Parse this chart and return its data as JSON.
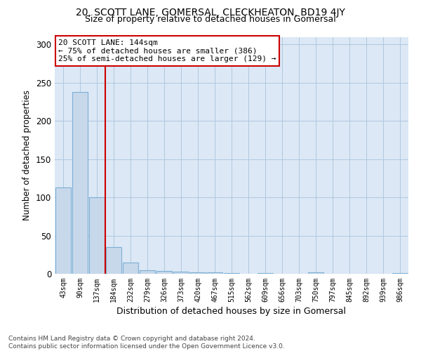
{
  "title": "20, SCOTT LANE, GOMERSAL, CLECKHEATON, BD19 4JY",
  "subtitle": "Size of property relative to detached houses in Gomersal",
  "xlabel": "Distribution of detached houses by size in Gomersal",
  "ylabel": "Number of detached properties",
  "footer_line1": "Contains HM Land Registry data © Crown copyright and database right 2024.",
  "footer_line2": "Contains public sector information licensed under the Open Government Licence v3.0.",
  "annotation_line1": "20 SCOTT LANE: 144sqm",
  "annotation_line2": "← 75% of detached houses are smaller (386)",
  "annotation_line3": "25% of semi-detached houses are larger (129) →",
  "categories": [
    "43sqm",
    "90sqm",
    "137sqm",
    "184sqm",
    "232sqm",
    "279sqm",
    "326sqm",
    "373sqm",
    "420sqm",
    "467sqm",
    "515sqm",
    "562sqm",
    "609sqm",
    "656sqm",
    "703sqm",
    "750sqm",
    "797sqm",
    "845sqm",
    "892sqm",
    "939sqm",
    "986sqm"
  ],
  "values": [
    113,
    238,
    100,
    35,
    15,
    5,
    4,
    3,
    2,
    2,
    1,
    0,
    1,
    0,
    0,
    2,
    0,
    0,
    0,
    0,
    1
  ],
  "bar_color": "#c8d8eb",
  "bar_edge_color": "#7bafd4",
  "vline_color": "#cc0000",
  "annotation_box_color": "#cc0000",
  "plot_bg_color": "#dce8f5",
  "figure_bg_color": "#ffffff",
  "grid_color": "#b0c8e0",
  "ylim": [
    0,
    310
  ],
  "yticks": [
    0,
    50,
    100,
    150,
    200,
    250,
    300
  ],
  "vline_x": 2.5
}
